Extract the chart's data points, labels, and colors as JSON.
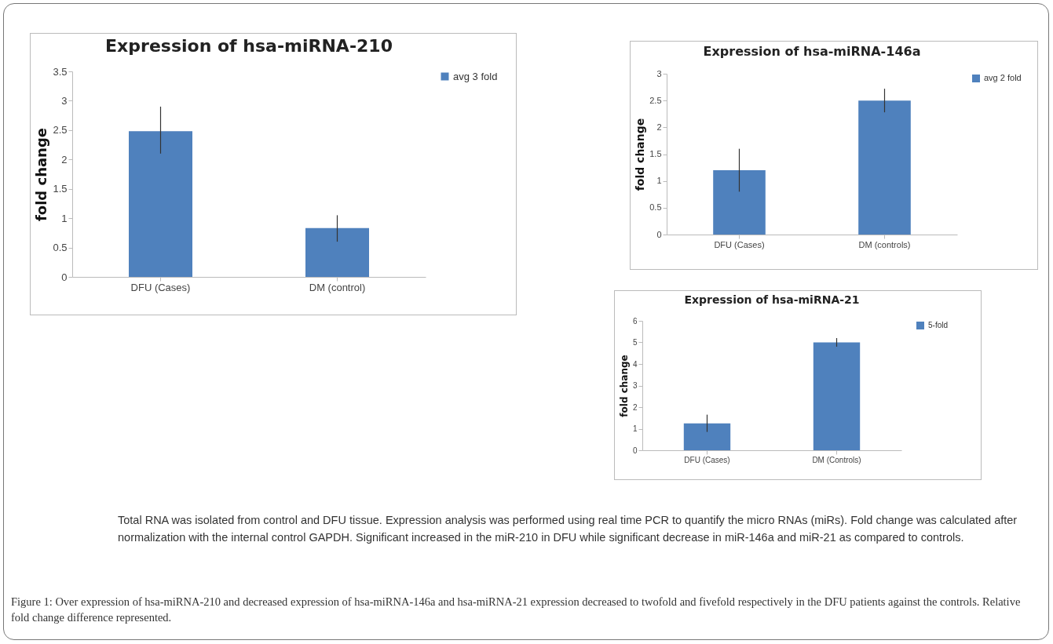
{
  "chart_data": [
    {
      "type": "bar",
      "title": "Expression of hsa-miRNA-210",
      "ylabel": "fold change",
      "categories": [
        "DFU (Cases)",
        "DM (control)"
      ],
      "series": [
        {
          "name": "avg 3 fold",
          "color": "#4f81bd",
          "values": [
            2.48,
            0.83
          ],
          "errors": [
            [
              2.1,
              2.9
            ],
            [
              0.6,
              1.05
            ]
          ]
        }
      ],
      "ylim": [
        0,
        3.5
      ],
      "yticks": [
        0,
        0.5,
        1,
        1.5,
        2,
        2.5,
        3,
        3.5
      ],
      "legend": "right"
    },
    {
      "type": "bar",
      "title": "Expression of hsa-miRNA-146a",
      "ylabel": "fold change",
      "categories": [
        "DFU (Cases)",
        "DM (controls)"
      ],
      "series": [
        {
          "name": "avg 2 fold",
          "color": "#4f81bd",
          "values": [
            1.2,
            2.5
          ],
          "errors": [
            [
              0.8,
              1.6
            ],
            [
              2.28,
              2.72
            ]
          ]
        }
      ],
      "ylim": [
        0,
        3
      ],
      "yticks": [
        0,
        0.5,
        1,
        1.5,
        2,
        2.5,
        3
      ],
      "legend": "right"
    },
    {
      "type": "bar",
      "title": "Expression of hsa-miRNA-21",
      "ylabel": "fold change",
      "categories": [
        "DFU (Cases)",
        "DM (Controls)"
      ],
      "series": [
        {
          "name": "5-fold",
          "color": "#4f81bd",
          "values": [
            1.25,
            5.0
          ],
          "errors": [
            [
              0.85,
              1.65
            ],
            [
              4.8,
              5.2
            ]
          ]
        }
      ],
      "ylim": [
        0,
        6
      ],
      "yticks": [
        0,
        1,
        2,
        3,
        4,
        5,
        6
      ],
      "legend": "right"
    },
    {
      "type": "other",
      "annotations": [
        "Total RNA was isolated from control and DFU tissue. Expression analysis was performed using real time PCR to quantify the micro RNAs (miRs). Fold change was calculated after normalization with the internal control GAPDH. Significant increased in the miR-210 in DFU while significant decrease in miR-146a and miR-21 as compared to controls.",
        "Figure 1: Over expression of hsa-miRNA-210 and decreased expression of hsa-miRNA-146a and hsa-miRNA-21 expression decreased to twofold and fivefold respectively in the DFU patients against the controls. Relative fold change difference represented."
      ]
    }
  ]
}
